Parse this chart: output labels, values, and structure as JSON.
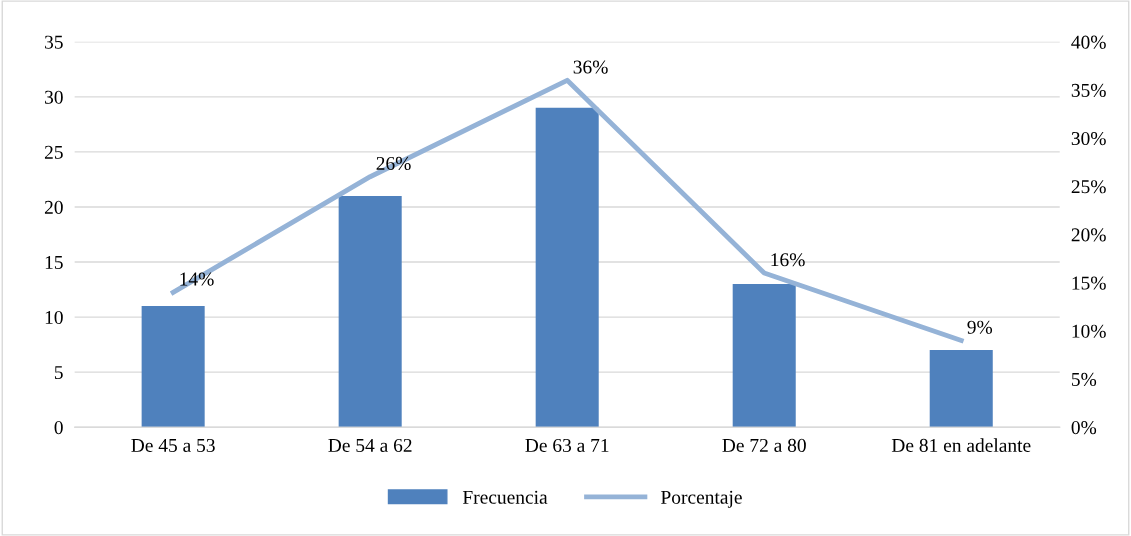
{
  "chart_data": {
    "type": "bar",
    "categories": [
      "De 45 a 53",
      "De 54 a 62",
      "De 63 a 71",
      "De 72 a 80",
      "De 81 en adelante"
    ],
    "series": [
      {
        "name": "Frecuencia",
        "color": "#4f81bd",
        "values": [
          11,
          21,
          29,
          13,
          7
        ]
      },
      {
        "name": "Porcentaje",
        "type": "line",
        "axis": "y2",
        "color": "#95b3d7",
        "values": [
          14,
          26,
          36,
          16,
          9
        ],
        "value_labels": [
          "14%",
          "26%",
          "36%",
          "16%",
          "9%"
        ]
      }
    ],
    "ylim": [
      0,
      35
    ],
    "yticks": [
      0,
      5,
      10,
      15,
      20,
      25,
      30,
      35
    ],
    "y2lim": [
      0,
      40
    ],
    "y2ticks": [
      {
        "value": 0,
        "label": "0%"
      },
      {
        "value": 5,
        "label": "5%"
      },
      {
        "value": 10,
        "label": "10%"
      },
      {
        "value": 15,
        "label": "15%"
      },
      {
        "value": 20,
        "label": "20%"
      },
      {
        "value": 25,
        "label": "25%"
      },
      {
        "value": 30,
        "label": "30%"
      },
      {
        "value": 35,
        "label": "35%"
      },
      {
        "value": 40,
        "label": "40%"
      }
    ],
    "grid": "y",
    "legend": "bottom",
    "marker": "none"
  }
}
